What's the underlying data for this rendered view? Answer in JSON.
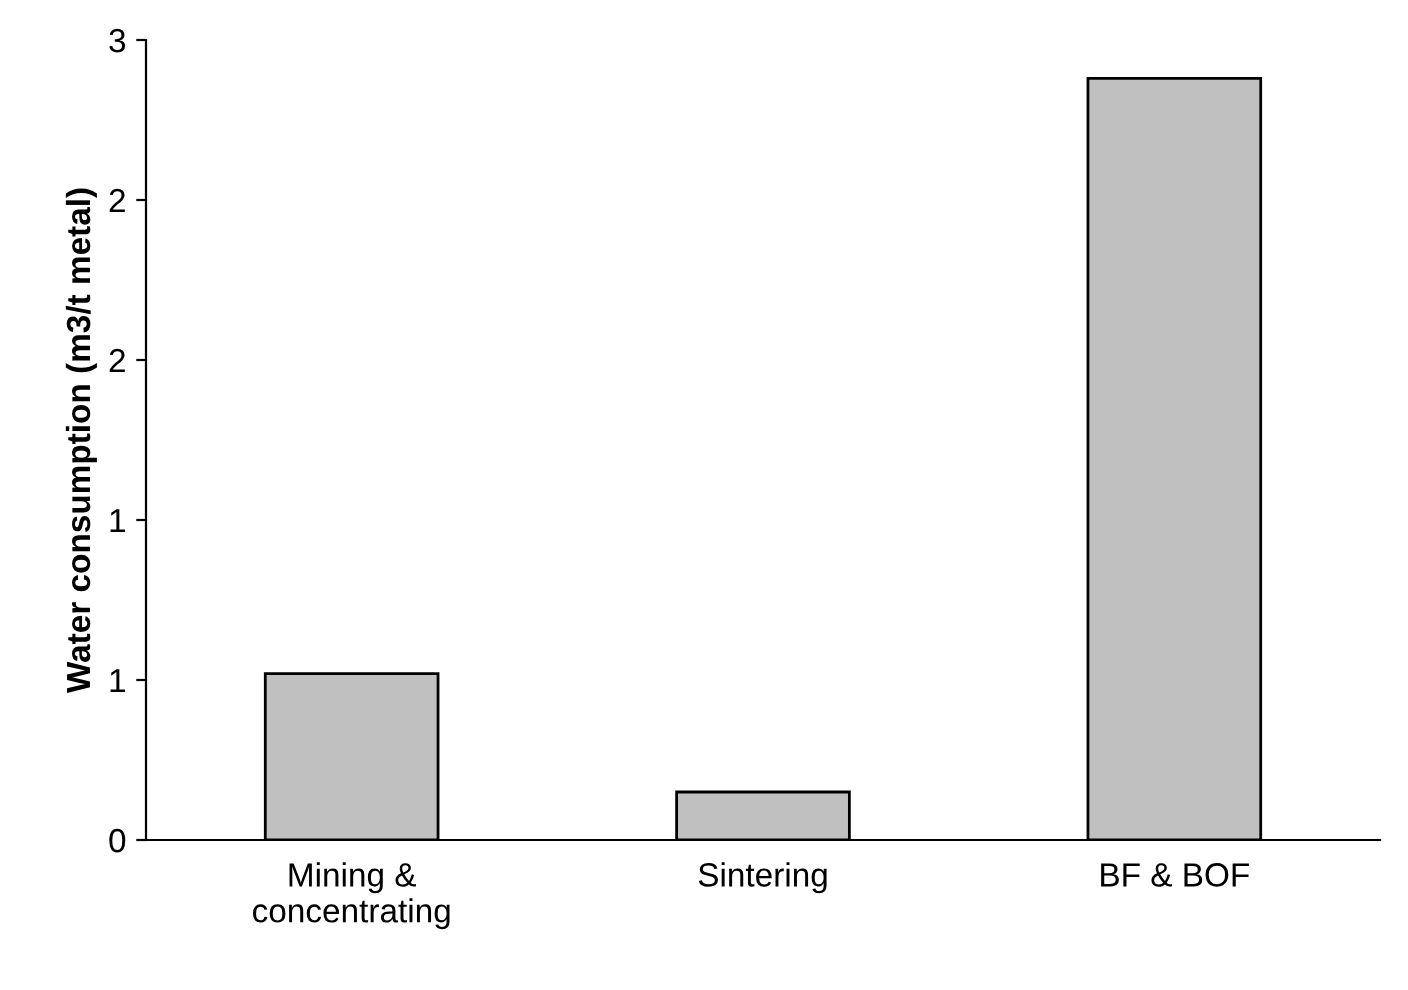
{
  "chart_data": {
    "type": "bar",
    "ylabel": "Water consumption (m3/t metal)",
    "categories": [
      "Mining &\nconcentrating",
      "Sintering",
      "BF & BOF"
    ],
    "values": [
      0.52,
      0.15,
      2.38
    ],
    "color": "#c0c0c0",
    "ylim": [
      0,
      2.5
    ],
    "yticks": [
      0,
      {
        "value": 0.5,
        "label": "1"
      },
      1,
      {
        "value": 1.5,
        "label": "2"
      },
      2,
      {
        "value": 2.5,
        "label": "3"
      }
    ],
    "grid": false
  }
}
